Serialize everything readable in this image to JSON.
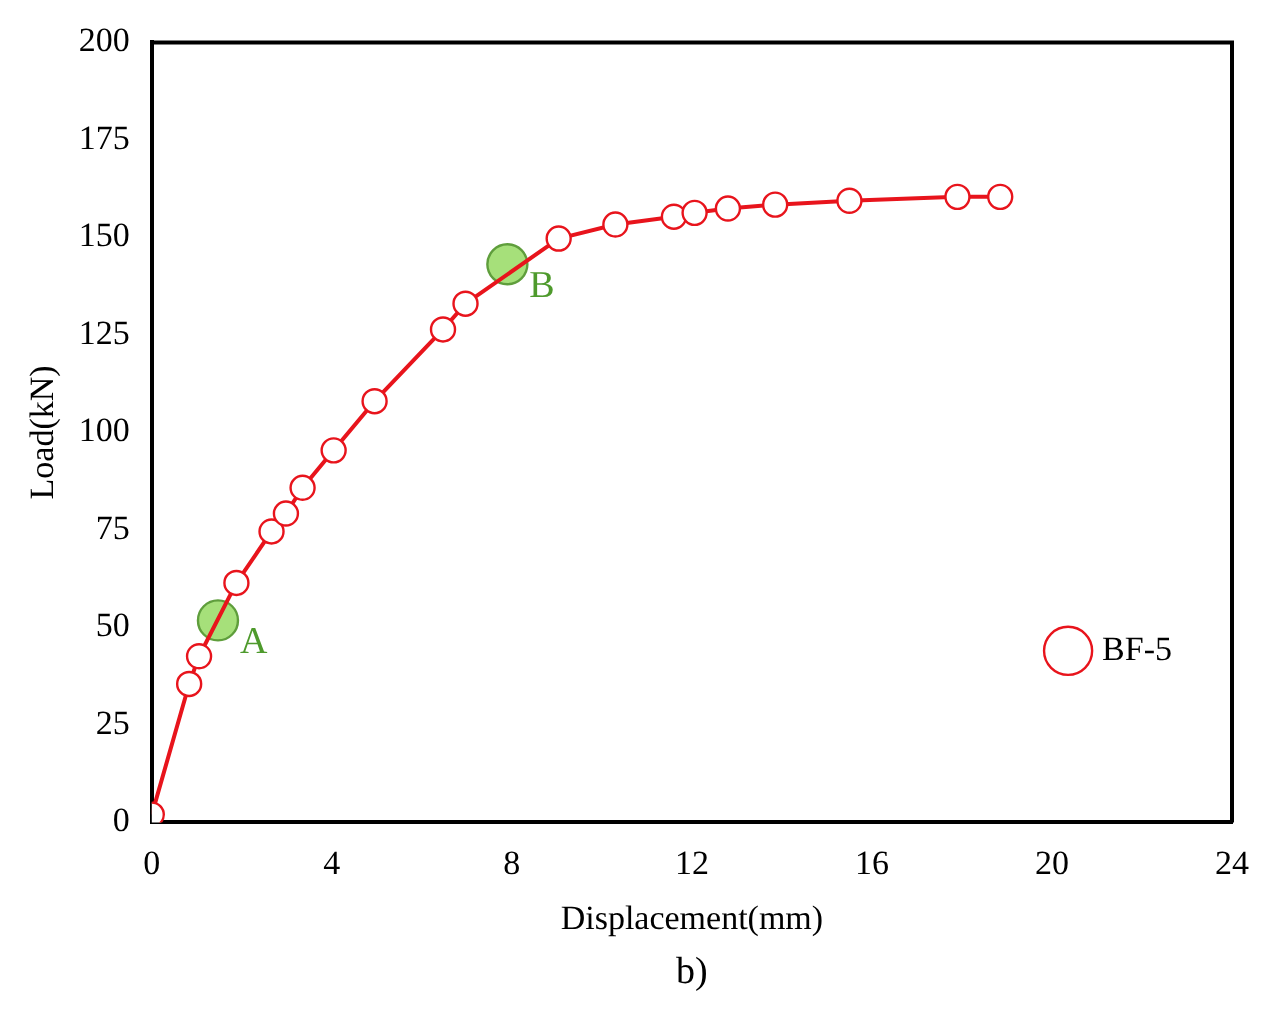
{
  "chart_data": {
    "type": "line",
    "xlabel": "Displacement(mm)",
    "ylabel": "Load(kN)",
    "xlim": [
      0,
      24
    ],
    "xticks": [
      0,
      4,
      8,
      12,
      16,
      20,
      24
    ],
    "ylim": [
      0,
      200
    ],
    "yticks": [
      0,
      25,
      50,
      75,
      100,
      125,
      150,
      175,
      200
    ],
    "grid": false,
    "legend": "right",
    "line_style": "solid",
    "series": [
      {
        "name": "BF-5",
        "color": "#e8141c",
        "marker": "circle",
        "x": [
          0,
          0.83,
          1.05,
          1.88,
          2.66,
          2.98,
          3.35,
          4.04,
          4.95,
          6.47,
          6.97,
          9.04,
          10.3,
          11.6,
          12.06,
          12.8,
          13.85,
          15.5,
          17.9,
          18.85
        ],
        "values": [
          2,
          35.5,
          42.6,
          61.4,
          74.6,
          79.2,
          85.8,
          95.4,
          108,
          126.4,
          133,
          149.7,
          153.3,
          155.3,
          156.3,
          157.4,
          158.4,
          159.4,
          160.4,
          160.4
        ]
      },
      {
        "type": "scatter",
        "color": "#a6e07a",
        "marker": "circle",
        "x": [
          1.47,
          7.9
        ],
        "values": [
          51.8,
          143.1
        ]
      }
    ],
    "annotations": [
      {
        "text": "A",
        "x": 1.47,
        "y": 51.8
      },
      {
        "text": "B",
        "x": 7.9,
        "y": 143.1
      },
      "b)"
    ]
  }
}
